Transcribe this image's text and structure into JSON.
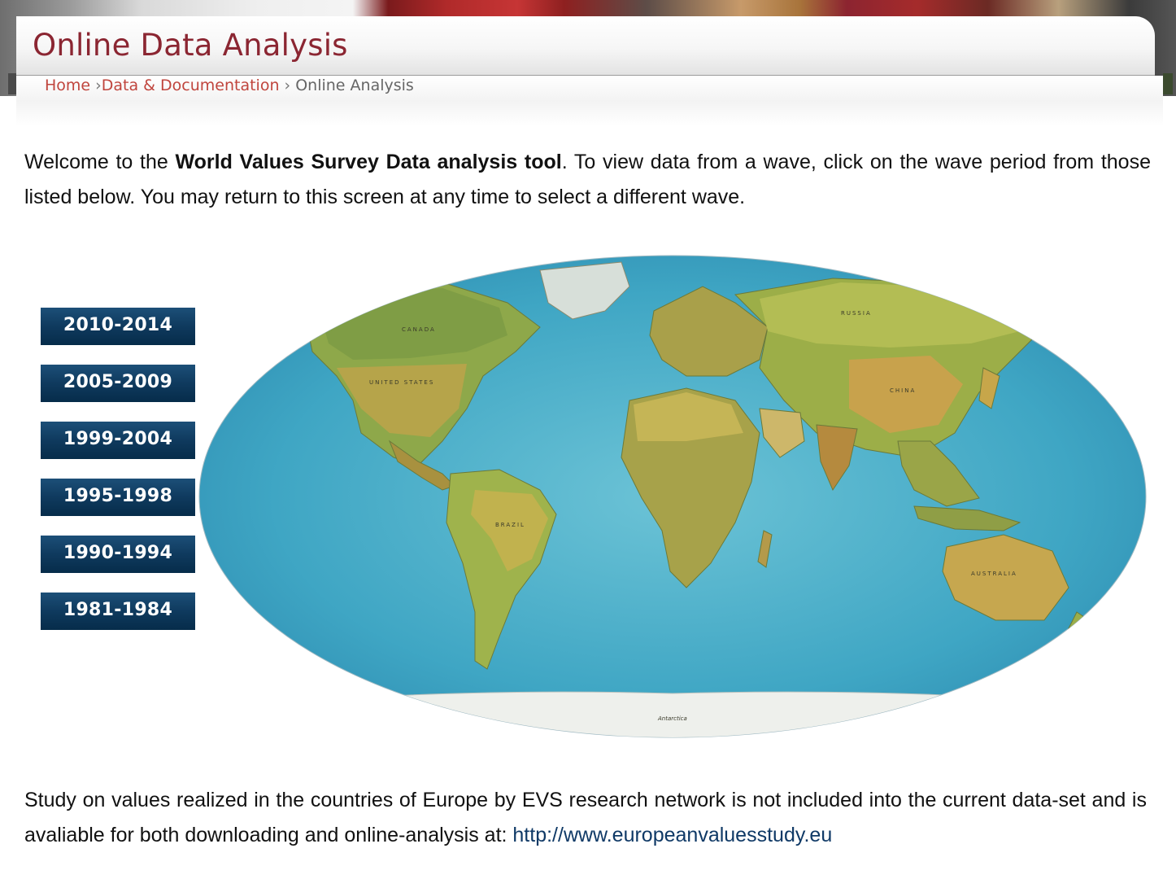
{
  "header": {
    "title": "Online Data Analysis",
    "colors": {
      "title": "#8b2632",
      "breadcrumb_link": "#c0453d",
      "button": "#0f3a5e"
    }
  },
  "breadcrumb": {
    "home": "Home",
    "sep1": "›",
    "data_docs": "Data & Documentation",
    "sep2": "›",
    "current": "Online Analysis"
  },
  "intro": {
    "part1": "Welcome to the ",
    "bold": "World Values Survey Data analysis tool",
    "part2": ". To view data from a wave, click on the wave period from those listed below. You may return to this screen at any time to select a different wave."
  },
  "waves": [
    {
      "label": "2010-2014"
    },
    {
      "label": "2005-2009"
    },
    {
      "label": "1999-2004"
    },
    {
      "label": "1995-1998"
    },
    {
      "label": "1990-1994"
    },
    {
      "label": "1981-1984"
    }
  ],
  "map": {
    "labels": {
      "canada": "CANADA",
      "usa": "UNITED STATES",
      "russia": "RUSSIA",
      "china": "CHINA",
      "brazil": "BRAZIL",
      "australia": "AUSTRALIA",
      "antarctica": "Antarctica"
    }
  },
  "footer": {
    "text": "Study on values realized in the countries of Europe by EVS research network is not included into the current data-set and is avaliable for both downloading and online-analysis at: ",
    "link": "http://www.europeanvaluesstudy.eu"
  }
}
